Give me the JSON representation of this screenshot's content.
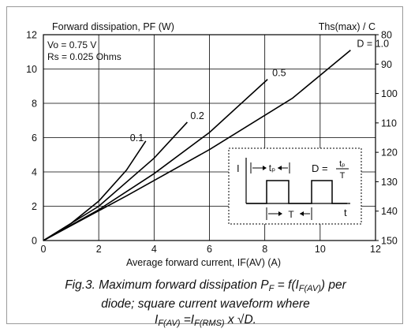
{
  "chart_data": {
    "type": "line",
    "title": "Forward dissipation, PF (W)",
    "right_axis_title": "Ths(max) / C",
    "xlabel": "Average forward current, IF(AV) (A)",
    "x_ticks": [
      "0",
      "2",
      "4",
      "6",
      "8",
      "10",
      "12"
    ],
    "y_ticks": [
      "0",
      "2",
      "4",
      "6",
      "8",
      "10",
      "12"
    ],
    "y2_ticks": [
      "150",
      "140",
      "130",
      "120",
      "110",
      "100",
      "90",
      "80"
    ],
    "xlim": [
      0,
      12
    ],
    "ylim": [
      0,
      12
    ],
    "y2lim": [
      150,
      80
    ],
    "grid": true,
    "annotations": [
      "Vo = 0.75 V",
      "Rs = 0.025 Ohms"
    ],
    "series": [
      {
        "name": "0.1",
        "x": [
          0,
          1,
          2,
          3,
          3.7
        ],
        "y": [
          0,
          1.0,
          2.3,
          4.1,
          5.8
        ]
      },
      {
        "name": "0.2",
        "x": [
          0,
          2,
          4,
          5.2
        ],
        "y": [
          0,
          2.0,
          4.8,
          6.9
        ]
      },
      {
        "name": "0.5",
        "x": [
          0,
          2,
          4,
          6,
          8.1
        ],
        "y": [
          0,
          1.8,
          3.9,
          6.3,
          9.4
        ]
      },
      {
        "name": "D = 1.0",
        "x": [
          0,
          3,
          6,
          9,
          11.1
        ],
        "y": [
          0,
          2.6,
          5.3,
          8.3,
          11.1
        ]
      }
    ],
    "inset": {
      "i_label": "I",
      "t_label": "t",
      "tp_label": "tₚ",
      "T_label": "T",
      "d_label": "D =",
      "frac_num": "tₚ",
      "frac_den": "T"
    }
  },
  "caption": {
    "line1_a": "Fig.3.  Maximum forward dissipation P",
    "line1_sub1": "F",
    "line1_b": " = f(I",
    "line1_sub2": "F(AV)",
    "line1_c": ") per",
    "line2": "diode; square current waveform where",
    "line3_a": "I",
    "line3_sub1": "F(AV)",
    "line3_b": " =I",
    "line3_sub2": "F(RMS)",
    "line3_c": " x √D."
  }
}
